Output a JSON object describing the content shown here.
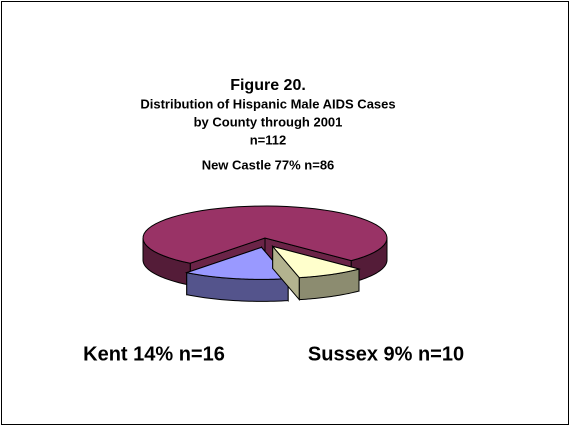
{
  "chart_data": {
    "type": "pie3d",
    "title": "Figure 20.",
    "subtitle": [
      "Distribution of Hispanic Male AIDS Cases",
      "by County through 2001",
      "n=112"
    ],
    "categories": [
      "New Castle",
      "Kent",
      "Sussex"
    ],
    "values": [
      77,
      14,
      9
    ],
    "value_labels": [
      "New Castle 77% n=86",
      "Kent 14% n=16",
      "Sussex 9% n=10"
    ],
    "colors": [
      "#993366",
      "#9999ff",
      "#ffffcc"
    ]
  }
}
